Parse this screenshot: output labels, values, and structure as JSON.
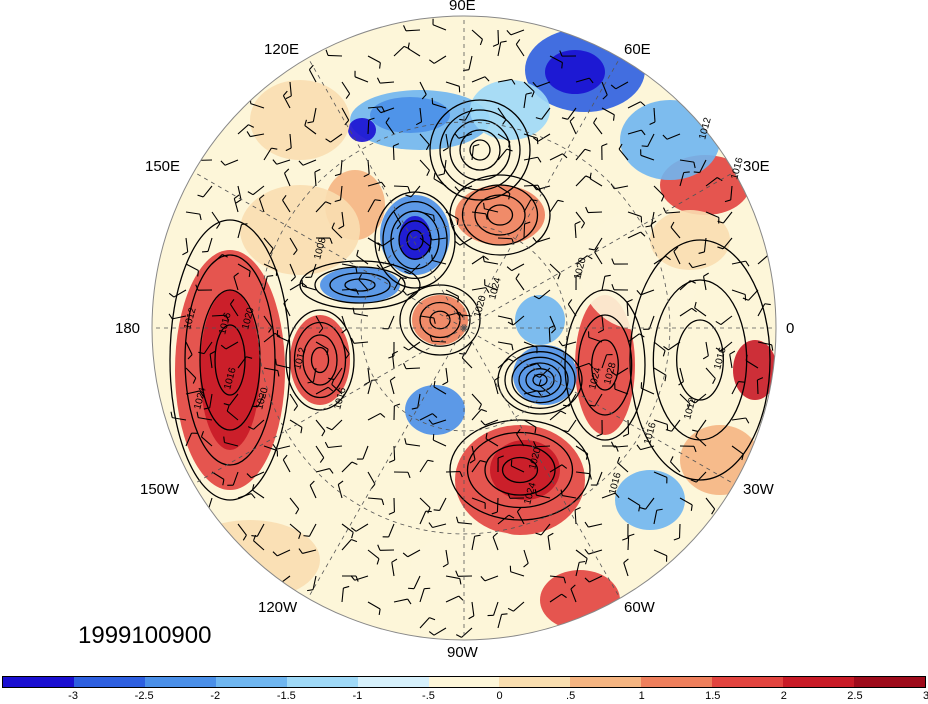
{
  "map": {
    "projection": "north-polar-stereographic",
    "shaded_field_anomaly": true,
    "contour_field": "sea-level pressure (hPa)",
    "wind_barbs": true,
    "contour_labels": [
      "1012",
      "1016",
      "1020",
      "1024",
      "1016",
      "1020",
      "1012",
      "1016",
      "1020",
      "1024",
      "1016",
      "1012",
      "1016",
      "1012",
      "1016",
      "1020",
      "1024",
      "1028",
      "1024",
      "1008",
      "1020",
      "1016"
    ],
    "longitude_labels": {
      "lon_90e": "90E",
      "lon_60e": "60E",
      "lon_120e": "120E",
      "lon_150e": "150E",
      "lon_30e": "30E",
      "lon_180": "180",
      "lon_0": "0",
      "lon_150w": "150W",
      "lon_30w": "30W",
      "lon_120w": "120W",
      "lon_60w": "60W",
      "lon_90w": "90W"
    },
    "date": "1999100900"
  },
  "colorbar": {
    "colors": [
      "#1a0fd1",
      "#2d5fe0",
      "#4a8fe8",
      "#6fb6f0",
      "#9fd9f7",
      "#d6f0fb",
      "#fdf6d9",
      "#f9deb0",
      "#f5b582",
      "#ee7f5c",
      "#e2443f",
      "#c81a26",
      "#9e0b1b"
    ],
    "tick_labels": [
      "-3",
      "-2.5",
      "-2",
      "-1.5",
      "-1",
      "-.5",
      "0",
      ".5",
      "1",
      "1.5",
      "2",
      "2.5",
      "3"
    ]
  }
}
